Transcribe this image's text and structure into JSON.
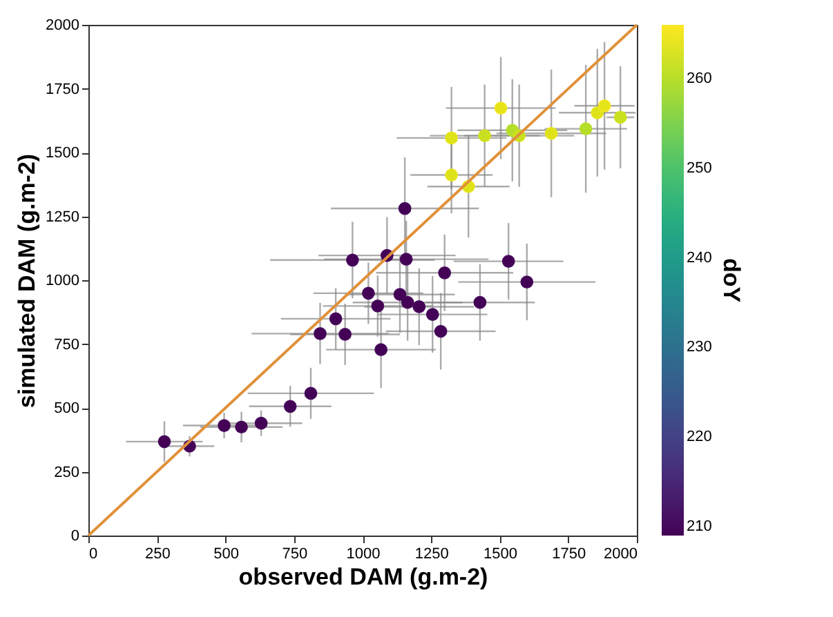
{
  "chart_data": {
    "type": "scatter",
    "xlabel": "observed DAM (g.m-2)",
    "ylabel": "simulated DAM (g.m-2)",
    "clabel": "doY",
    "xlim": [
      0,
      2000
    ],
    "ylim": [
      0,
      2000
    ],
    "xticks": [
      0,
      250,
      500,
      750,
      1000,
      1250,
      1500,
      1750,
      2000
    ],
    "yticks": [
      0,
      250,
      500,
      750,
      1000,
      1250,
      1500,
      1750,
      2000
    ],
    "clim": [
      209,
      266
    ],
    "cticks": [
      210,
      220,
      230,
      240,
      250,
      260
    ],
    "grid": false,
    "series": [
      {
        "marker": "circle",
        "colors": [
          "#440256",
          "#440256",
          "#440256",
          "#440256",
          "#440256",
          "#440256",
          "#440256",
          "#440256",
          "#440256",
          "#440256",
          "#440256",
          "#440256",
          "#440256",
          "#440256",
          "#440256",
          "#440256",
          "#440256",
          "#440256",
          "#440256",
          "#440256",
          "#440256",
          "#440256",
          "#440256",
          "#440256",
          "#440256",
          "#440256",
          "#dde318",
          "#dde318",
          "#dde318",
          "#c8e020",
          "#e5e419",
          "#b5de2b",
          "#c8e020",
          "#dde318",
          "#b5de2b",
          "#dde318",
          "#e5e419",
          "#c8e020"
        ],
        "x": [
          277,
          369,
          495,
          558,
          630,
          736,
          811,
          1154,
          963,
          1089,
          1159,
          1299,
          1532,
          1599,
          1021,
          1055,
          1136,
          1164,
          1206,
          1255,
          1285,
          1428,
          902,
          845,
          936,
          1067,
          1324,
          1324,
          1386,
          1445,
          1504,
          1546,
          1571,
          1688,
          1814,
          1856,
          1882,
          1940
        ],
        "values": [
          368,
          350,
          431,
          425,
          440,
          506,
          557,
          1281,
          1079,
          1097,
          1082,
          1029,
          1074,
          993,
          949,
          899,
          944,
          913,
          896,
          866,
          800,
          913,
          849,
          791,
          788,
          728,
          1557,
          1412,
          1367,
          1566,
          1674,
          1587,
          1566,
          1575,
          1593,
          1656,
          1683,
          1638
        ],
        "cvalues": [
          210,
          210,
          210,
          210,
          210,
          210,
          210,
          210,
          210,
          210,
          210,
          210,
          210,
          210,
          210,
          210,
          210,
          210,
          210,
          210,
          210,
          210,
          210,
          210,
          210,
          210,
          264,
          264,
          264,
          262,
          265,
          260,
          262,
          264,
          260,
          264,
          265,
          262
        ],
        "xerrors": [
          140,
          90,
          150,
          150,
          150,
          150,
          230,
          270,
          300,
          250,
          300,
          250,
          200,
          250,
          200,
          200,
          200,
          200,
          200,
          200,
          200,
          200,
          200,
          250,
          200,
          200,
          200,
          150,
          150,
          200,
          200,
          200,
          200,
          200,
          150,
          140,
          110,
          50
        ],
        "errors": [
          80,
          40,
          50,
          60,
          50,
          80,
          100,
          200,
          150,
          150,
          150,
          150,
          150,
          150,
          120,
          120,
          150,
          150,
          150,
          150,
          150,
          150,
          120,
          120,
          120,
          150,
          200,
          150,
          200,
          200,
          200,
          200,
          200,
          250,
          250,
          250,
          250,
          200
        ]
      },
      {
        "type": "line",
        "color": "#e0913a",
        "x": [
          0,
          2000
        ],
        "values": [
          0,
          2000
        ]
      }
    ]
  }
}
